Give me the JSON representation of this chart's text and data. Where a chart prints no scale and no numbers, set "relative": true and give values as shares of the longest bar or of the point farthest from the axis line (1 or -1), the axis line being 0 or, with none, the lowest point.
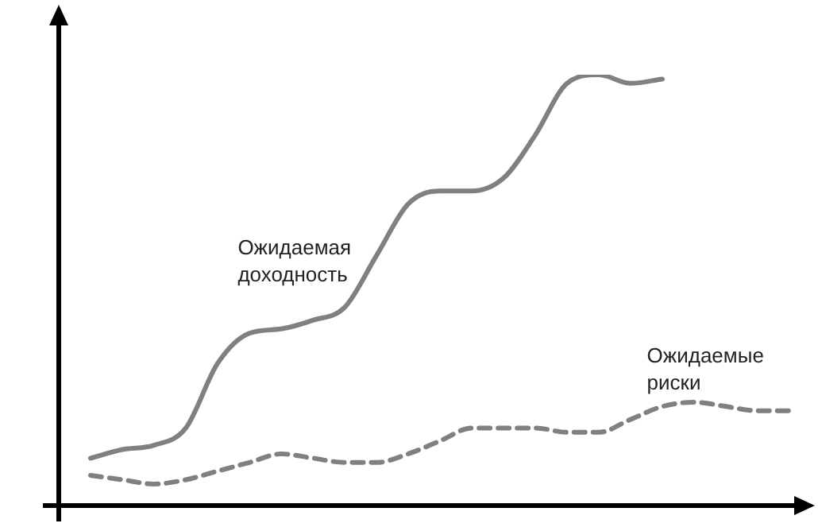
{
  "chart_data": {
    "type": "line",
    "relative": true,
    "legend": false,
    "marker": "none",
    "categories": [
      null,
      null,
      null,
      null,
      null,
      null,
      null,
      null,
      null,
      null,
      null,
      null,
      null,
      null,
      null,
      null,
      null,
      null,
      null,
      null,
      null,
      null,
      null,
      null
    ],
    "series": [
      {
        "name": "Ожидаемая доходность",
        "color": "#808080",
        "line_style": "solid",
        "values": [
          null,
          0.11,
          0.13,
          0.14,
          0.18,
          0.33,
          0.4,
          0.41,
          0.43,
          0.46,
          0.58,
          0.7,
          0.73,
          0.73,
          0.76,
          0.86,
          0.98,
          1.0,
          0.98,
          0.99,
          null,
          null,
          null,
          null
        ]
      },
      {
        "name": "Ожидаемые риски",
        "color": "#808080",
        "line_style": "dashed",
        "values": [
          null,
          0.07,
          0.06,
          0.05,
          0.06,
          0.08,
          0.1,
          0.12,
          0.11,
          0.1,
          0.1,
          0.12,
          0.15,
          0.18,
          0.18,
          0.18,
          0.17,
          0.17,
          0.2,
          0.23,
          0.24,
          0.23,
          0.22,
          0.22
        ]
      }
    ]
  }
}
